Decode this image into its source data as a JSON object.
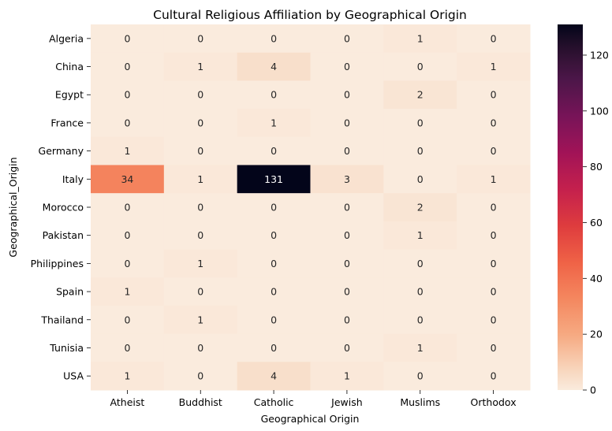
{
  "chart_data": {
    "type": "heatmap",
    "title": "Cultural Religious Affiliation by Geographical Origin",
    "xlabel": "Geographical Origin",
    "ylabel": "Geographical_Origin",
    "columns": [
      "Atheist",
      "Buddhist",
      "Catholic",
      "Jewish",
      "Muslims",
      "Orthodox"
    ],
    "rows": [
      "Algeria",
      "China",
      "Egypt",
      "France",
      "Germany",
      "Italy",
      "Morocco",
      "Pakistan",
      "Philippines",
      "Spain",
      "Thailand",
      "Tunisia",
      "USA"
    ],
    "values": [
      [
        0,
        0,
        0,
        0,
        1,
        0
      ],
      [
        0,
        1,
        4,
        0,
        0,
        1
      ],
      [
        0,
        0,
        0,
        0,
        2,
        0
      ],
      [
        0,
        0,
        1,
        0,
        0,
        0
      ],
      [
        1,
        0,
        0,
        0,
        0,
        0
      ],
      [
        34,
        1,
        131,
        3,
        0,
        1
      ],
      [
        0,
        0,
        0,
        0,
        2,
        0
      ],
      [
        0,
        0,
        0,
        0,
        1,
        0
      ],
      [
        0,
        1,
        0,
        0,
        0,
        0
      ],
      [
        1,
        0,
        0,
        0,
        0,
        0
      ],
      [
        0,
        1,
        0,
        0,
        0,
        0
      ],
      [
        0,
        0,
        0,
        0,
        1,
        0
      ],
      [
        1,
        0,
        4,
        1,
        0,
        0
      ]
    ],
    "colorbar": {
      "range": [
        0,
        131
      ],
      "ticks": [
        "0",
        "20",
        "40",
        "60",
        "80",
        "100",
        "120"
      ],
      "colormap": "rocket_r"
    },
    "annotations": true,
    "grid": false
  }
}
